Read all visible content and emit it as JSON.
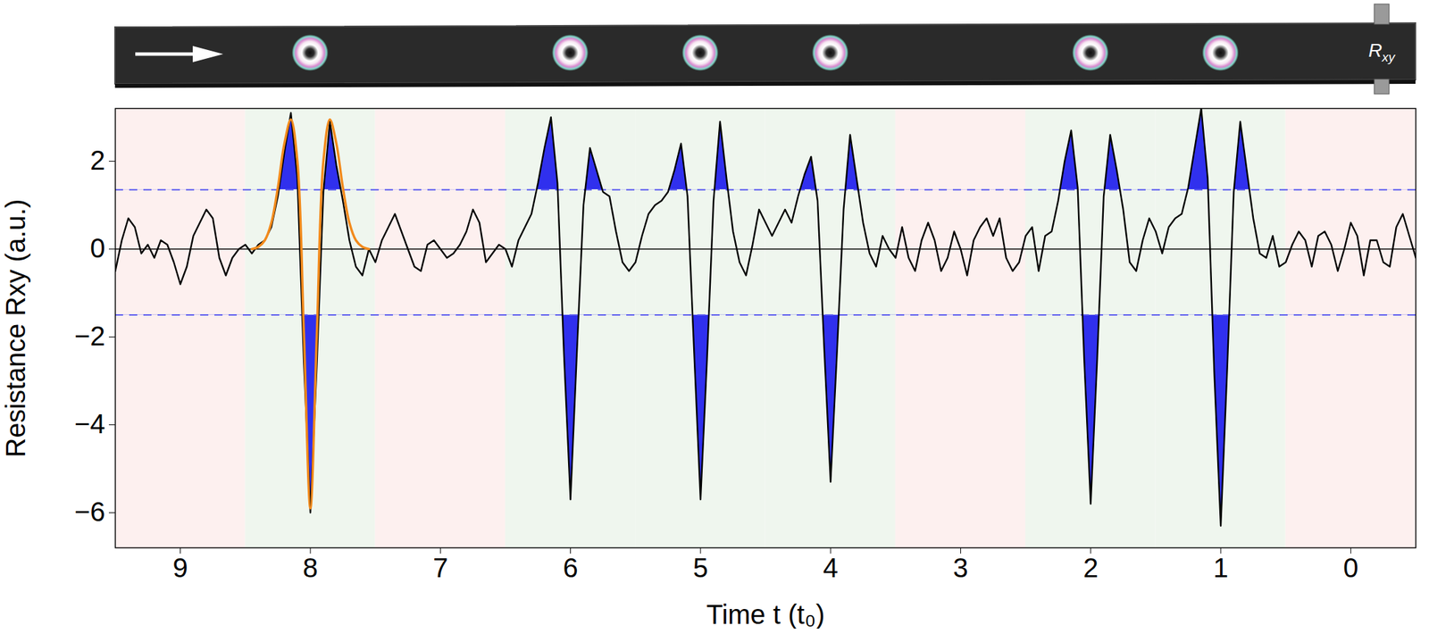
{
  "chart_data": {
    "type": "line",
    "x_label": "Time t (t₀)",
    "y_label": "Resistance Rxy (a.u.)",
    "xlim": [
      9.5,
      -0.5
    ],
    "xticks": [
      9,
      8,
      7,
      6,
      5,
      4,
      3,
      2,
      1,
      0
    ],
    "ylim": [
      -6.8,
      3.2
    ],
    "yticks": [
      -6,
      -4,
      -2,
      0,
      2
    ],
    "grid": false,
    "series": [
      {
        "color": "#000000",
        "line_style": "solid",
        "x": [
          9.5,
          9.45,
          9.4,
          9.35,
          9.3,
          9.25,
          9.2,
          9.15,
          9.1,
          9.05,
          9,
          8.95,
          8.9,
          8.85,
          8.8,
          8.75,
          8.7,
          8.65,
          8.6,
          8.55,
          8.5,
          8.45,
          8.4,
          8.35,
          8.3,
          8.25,
          8.2,
          8.15,
          8.1,
          8.05,
          8,
          7.95,
          7.9,
          7.85,
          7.8,
          7.75,
          7.7,
          7.65,
          7.6,
          7.55,
          7.5,
          7.45,
          7.4,
          7.35,
          7.3,
          7.25,
          7.2,
          7.15,
          7.1,
          7.05,
          7,
          6.95,
          6.9,
          6.85,
          6.8,
          6.75,
          6.7,
          6.65,
          6.6,
          6.55,
          6.5,
          6.45,
          6.4,
          6.35,
          6.3,
          6.25,
          6.2,
          6.15,
          6.1,
          6.05,
          6,
          5.95,
          5.9,
          5.85,
          5.8,
          5.75,
          5.7,
          5.65,
          5.6,
          5.55,
          5.5,
          5.45,
          5.4,
          5.35,
          5.3,
          5.25,
          5.2,
          5.15,
          5.1,
          5.05,
          5,
          4.95,
          4.9,
          4.85,
          4.8,
          4.75,
          4.7,
          4.65,
          4.6,
          4.55,
          4.5,
          4.45,
          4.4,
          4.35,
          4.3,
          4.25,
          4.2,
          4.15,
          4.1,
          4.05,
          4,
          3.95,
          3.9,
          3.85,
          3.8,
          3.75,
          3.7,
          3.65,
          3.6,
          3.55,
          3.5,
          3.45,
          3.4,
          3.35,
          3.3,
          3.25,
          3.2,
          3.15,
          3.1,
          3.05,
          3,
          2.95,
          2.9,
          2.85,
          2.8,
          2.75,
          2.7,
          2.65,
          2.6,
          2.55,
          2.5,
          2.45,
          2.4,
          2.35,
          2.3,
          2.25,
          2.2,
          2.15,
          2.1,
          2.05,
          2,
          1.95,
          1.9,
          1.85,
          1.8,
          1.75,
          1.7,
          1.65,
          1.6,
          1.55,
          1.5,
          1.45,
          1.4,
          1.35,
          1.3,
          1.25,
          1.2,
          1.15,
          1.1,
          1.05,
          1,
          0.95,
          0.9,
          0.85,
          0.8,
          0.75,
          0.7,
          0.65,
          0.6,
          0.55,
          0.5,
          0.45,
          0.4,
          0.35,
          0.3,
          0.25,
          0.2,
          0.15,
          0.1,
          0.05,
          0,
          -0.05,
          -0.1,
          -0.15,
          -0.2,
          -0.25,
          -0.3,
          -0.35,
          -0.4,
          -0.45,
          -0.5
        ],
        "values": [
          -0.5,
          0.2,
          0.7,
          0.5,
          -0.1,
          0.1,
          -0.2,
          0.2,
          0.1,
          -0.3,
          -0.8,
          -0.4,
          0.3,
          0.6,
          0.9,
          0.7,
          -0.2,
          -0.6,
          -0.2,
          0.0,
          0.1,
          -0.1,
          0.1,
          0.2,
          0.5,
          1.2,
          2.2,
          3.1,
          1.6,
          -2.6,
          -6.0,
          -2.6,
          1.3,
          2.9,
          1.9,
          1.1,
          0.2,
          -0.4,
          -0.6,
          0.0,
          -0.3,
          0.2,
          0.5,
          0.8,
          0.4,
          0.0,
          -0.4,
          -0.5,
          0.1,
          0.2,
          0.0,
          -0.2,
          -0.1,
          0.1,
          0.4,
          0.9,
          0.6,
          -0.3,
          -0.1,
          0.1,
          0.0,
          -0.4,
          0.2,
          0.5,
          0.8,
          1.5,
          2.3,
          3.0,
          1.5,
          -2.4,
          -5.7,
          -2.3,
          1.0,
          2.3,
          1.8,
          1.3,
          1.2,
          0.4,
          -0.3,
          -0.5,
          -0.3,
          0.3,
          0.8,
          1.0,
          1.1,
          1.3,
          1.8,
          2.4,
          1.2,
          -2.3,
          -5.7,
          -2.5,
          1.1,
          2.9,
          1.6,
          0.4,
          -0.3,
          -0.6,
          0.1,
          0.9,
          0.6,
          0.3,
          0.6,
          0.9,
          0.6,
          1.2,
          1.7,
          2.1,
          1.1,
          -2.2,
          -5.3,
          -2.3,
          0.9,
          2.6,
          1.6,
          0.6,
          -0.1,
          -0.4,
          0.3,
          0.0,
          -0.2,
          0.5,
          -0.2,
          -0.5,
          0.2,
          0.6,
          0.2,
          -0.5,
          -0.2,
          0.4,
          0.0,
          -0.6,
          0.2,
          0.5,
          0.7,
          0.3,
          0.7,
          -0.2,
          -0.5,
          -0.3,
          0.3,
          0.5,
          -0.5,
          0.3,
          0.4,
          1.1,
          2.0,
          2.7,
          1.4,
          -2.5,
          -5.8,
          -2.5,
          1.2,
          2.6,
          1.8,
          0.9,
          -0.3,
          -0.5,
          0.2,
          0.7,
          0.4,
          -0.1,
          0.5,
          0.7,
          0.8,
          1.4,
          2.3,
          3.2,
          1.6,
          -2.8,
          -6.3,
          -2.7,
          1.3,
          2.9,
          1.8,
          0.7,
          -0.1,
          -0.2,
          0.3,
          -0.4,
          -0.3,
          0.1,
          0.4,
          0.2,
          -0.4,
          0.3,
          0.4,
          0.1,
          -0.5,
          0.0,
          0.6,
          0.3,
          -0.6,
          0.2,
          0.2,
          -0.3,
          -0.4,
          0.5,
          0.8,
          0.3,
          -0.2
        ]
      },
      {
        "color": "#f28a1c",
        "line_style": "solid",
        "x": [
          8.45,
          8.4,
          8.35,
          8.3,
          8.25,
          8.2,
          8.15,
          8.1,
          8.05,
          8,
          7.95,
          7.9,
          7.85,
          7.8,
          7.75,
          7.7,
          7.65,
          7.6,
          7.55
        ],
        "values": [
          0.0,
          0.05,
          0.2,
          0.6,
          1.4,
          2.4,
          2.95,
          2.0,
          -1.9,
          -5.9,
          -1.9,
          2.0,
          2.95,
          2.4,
          1.4,
          0.6,
          0.2,
          0.05,
          0.0
        ]
      }
    ],
    "thresholds": {
      "values": [
        1.35,
        -1.5
      ],
      "color": "#5a5af0",
      "line_style": "dashed",
      "fill_color": "#3030ee"
    },
    "bands": {
      "edges": [
        9.5,
        8.5,
        7.5,
        6.5,
        5.5,
        4.5,
        3.5,
        2.5,
        1.5,
        0.5,
        -0.5
      ],
      "colors": [
        "#fdf0ef",
        "#eff6ee",
        "#fdf0ef",
        "#eff6ee",
        "#eff6ee",
        "#eff6ee",
        "#fdf0ef",
        "#eff6ee",
        "#eff6ee",
        "#fdf0ef"
      ]
    },
    "diagram": {
      "label": "Rxy",
      "skyrmions": [
        8,
        6,
        5,
        4,
        2,
        1
      ]
    }
  }
}
